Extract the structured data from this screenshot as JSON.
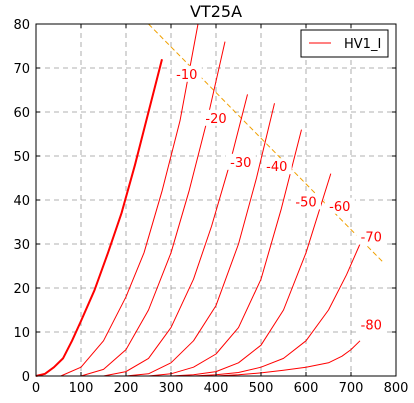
{
  "chart_data": {
    "type": "line",
    "title": "VT25A",
    "xlabel": "",
    "ylabel": "",
    "xlim": [
      0,
      800
    ],
    "ylim": [
      0,
      80
    ],
    "x_ticks": [
      0,
      100,
      200,
      300,
      400,
      500,
      600,
      700,
      800
    ],
    "y_ticks": [
      0,
      10,
      20,
      30,
      40,
      50,
      60,
      70,
      80
    ],
    "grid": true,
    "legend": {
      "position": "top-right",
      "entries": [
        "HV1_I"
      ]
    },
    "series_color": "#ff0000",
    "load_line_color": "#f0a000",
    "load_line": {
      "x": [
        250,
        770
      ],
      "y": [
        80,
        26
      ]
    },
    "curves": [
      {
        "label": "",
        "bold": true,
        "x": [
          0,
          20,
          40,
          60,
          80,
          100,
          130,
          160,
          190,
          220,
          250,
          280
        ],
        "y": [
          0,
          0.5,
          2,
          4,
          8,
          12.5,
          19.5,
          28,
          37,
          48,
          60,
          72
        ]
      },
      {
        "label": "-10",
        "x": [
          55,
          100,
          150,
          200,
          240,
          280,
          320,
          360
        ],
        "y": [
          0,
          2,
          8,
          18,
          28,
          42,
          58,
          80
        ]
      },
      {
        "label": "-20",
        "x": [
          100,
          150,
          200,
          250,
          300,
          340,
          380,
          420
        ],
        "y": [
          0,
          1.5,
          6,
          15,
          28,
          42,
          58,
          76
        ]
      },
      {
        "label": "-30",
        "x": [
          150,
          200,
          250,
          300,
          350,
          390,
          430,
          470
        ],
        "y": [
          0,
          1,
          4,
          11,
          22,
          34,
          48,
          64
        ]
      },
      {
        "label": "-40",
        "x": [
          200,
          250,
          300,
          350,
          400,
          450,
          490,
          530
        ],
        "y": [
          0,
          0.5,
          3,
          8,
          16,
          30,
          45,
          62
        ]
      },
      {
        "label": "-50",
        "x": [
          250,
          300,
          350,
          400,
          450,
          500,
          545,
          590
        ],
        "y": [
          0,
          0.5,
          2,
          5,
          11,
          22,
          38,
          56
        ]
      },
      {
        "label": "-60",
        "x": [
          300,
          350,
          400,
          450,
          500,
          550,
          600,
          655
        ],
        "y": [
          0,
          0.3,
          1,
          3,
          7,
          15,
          28,
          46
        ]
      },
      {
        "label": "-70",
        "x": [
          350,
          400,
          450,
          500,
          550,
          600,
          650,
          690,
          720
        ],
        "y": [
          0,
          0.3,
          0.8,
          2,
          4,
          8,
          15,
          23,
          30
        ]
      },
      {
        "label": "-80",
        "x": [
          400,
          450,
          500,
          550,
          600,
          650,
          680,
          700,
          720
        ],
        "y": [
          0,
          0.3,
          0.7,
          1.3,
          2,
          3,
          4.5,
          6,
          8
        ]
      }
    ],
    "curve_labels": [
      {
        "text": "-10",
        "x": 335,
        "y": 68
      },
      {
        "text": "-20",
        "x": 400,
        "y": 58
      },
      {
        "text": "-30",
        "x": 455,
        "y": 48
      },
      {
        "text": "-40",
        "x": 535,
        "y": 47
      },
      {
        "text": "-50",
        "x": 600,
        "y": 39
      },
      {
        "text": "-60",
        "x": 675,
        "y": 38
      },
      {
        "text": "-70",
        "x": 745,
        "y": 31
      },
      {
        "text": "-80",
        "x": 745,
        "y": 11
      }
    ]
  }
}
